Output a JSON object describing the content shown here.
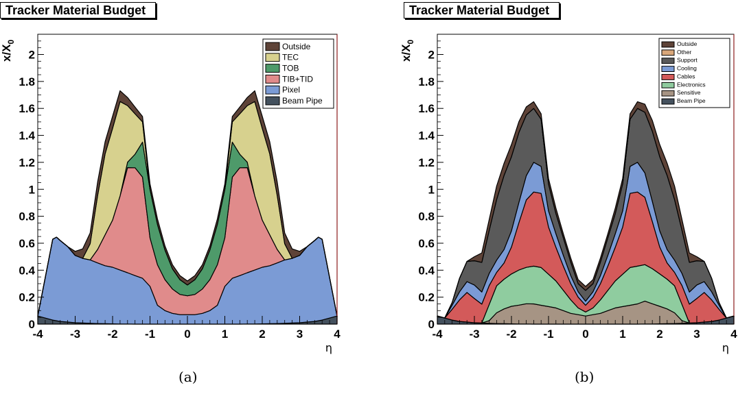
{
  "captions": [
    "(a)",
    "(b)"
  ],
  "colors": {
    "outside": "#5e4338",
    "tec": "#d7d18e",
    "tob": "#4e9a6a",
    "tib_tid": "#e08b8b",
    "pixel": "#7b9bd5",
    "beam_pipe": "#44515e",
    "other": "#d9a77a",
    "support": "#5a5a5a",
    "cooling": "#7b9bd5",
    "cables": "#d35a5a",
    "electronics": "#8fcc9f",
    "sensitive": "#a69484"
  },
  "chart_data": [
    {
      "type": "area",
      "title": "Tracker Material Budget",
      "xlabel": "η",
      "ylabel": "x/X0",
      "xlim": [
        -4,
        4
      ],
      "ylim": [
        0,
        2.15
      ],
      "xticks": [
        "-4",
        "-3",
        "-2",
        "-1",
        "0",
        "1",
        "2",
        "3",
        "4"
      ],
      "yticks": [
        "0",
        "0.2",
        "0.4",
        "0.6",
        "0.8",
        "1",
        "1.2",
        "1.4",
        "1.6",
        "1.8",
        "2"
      ],
      "stacked": true,
      "legend_position": "top-right",
      "x": [
        -4.0,
        -3.6,
        -3.5,
        -3.4,
        -3.2,
        -3.0,
        -2.8,
        -2.6,
        -2.4,
        -2.2,
        -2.0,
        -1.8,
        -1.6,
        -1.4,
        -1.2,
        -1.0,
        -0.8,
        -0.6,
        -0.4,
        -0.2,
        0.0,
        0.2,
        0.4,
        0.6,
        0.8,
        1.0,
        1.2,
        1.4,
        1.6,
        1.8,
        2.0,
        2.2,
        2.4,
        2.6,
        2.8,
        3.0,
        3.2,
        3.4,
        3.5,
        3.6,
        4.0
      ],
      "series": [
        {
          "name": "Beam Pipe",
          "values": [
            0.06,
            0.03,
            0.025,
            0.02,
            0.015,
            0.01,
            0.008,
            0.006,
            0.004,
            0.003,
            0.002,
            0.001,
            0.001,
            0.0,
            0.0,
            0.0,
            0.0,
            0.0,
            0.0,
            0.0,
            0.0,
            0.0,
            0.0,
            0.0,
            0.0,
            0.0,
            0.0,
            0.0,
            0.001,
            0.001,
            0.002,
            0.003,
            0.004,
            0.006,
            0.008,
            0.01,
            0.015,
            0.02,
            0.025,
            0.03,
            0.06
          ]
        },
        {
          "name": "Pixel",
          "values": [
            0.0,
            0.6,
            0.62,
            0.6,
            0.56,
            0.5,
            0.48,
            0.47,
            0.45,
            0.43,
            0.42,
            0.4,
            0.38,
            0.36,
            0.34,
            0.28,
            0.14,
            0.1,
            0.08,
            0.07,
            0.07,
            0.07,
            0.08,
            0.1,
            0.14,
            0.28,
            0.34,
            0.36,
            0.38,
            0.4,
            0.42,
            0.43,
            0.45,
            0.47,
            0.48,
            0.5,
            0.56,
            0.6,
            0.62,
            0.6,
            0.0
          ]
        },
        {
          "name": "TIB+TID",
          "values": [
            0.0,
            0.0,
            0.0,
            0.0,
            0.0,
            0.0,
            0.0,
            0.0,
            0.1,
            0.23,
            0.35,
            0.55,
            0.78,
            0.8,
            0.75,
            0.36,
            0.3,
            0.23,
            0.18,
            0.15,
            0.14,
            0.15,
            0.18,
            0.23,
            0.3,
            0.36,
            0.75,
            0.8,
            0.78,
            0.55,
            0.35,
            0.23,
            0.1,
            0.0,
            0.0,
            0.0,
            0.0,
            0.0,
            0.0,
            0.0,
            0.0
          ]
        },
        {
          "name": "TOB",
          "values": [
            0.0,
            0.0,
            0.0,
            0.0,
            0.0,
            0.0,
            0.0,
            0.0,
            0.0,
            0.0,
            0.0,
            0.0,
            0.04,
            0.1,
            0.26,
            0.36,
            0.3,
            0.22,
            0.15,
            0.11,
            0.08,
            0.11,
            0.15,
            0.22,
            0.3,
            0.36,
            0.26,
            0.1,
            0.04,
            0.0,
            0.0,
            0.0,
            0.0,
            0.0,
            0.0,
            0.0,
            0.0,
            0.0,
            0.0,
            0.0,
            0.0
          ]
        },
        {
          "name": "TEC",
          "values": [
            0.0,
            0.0,
            0.0,
            0.0,
            0.0,
            0.0,
            0.0,
            0.12,
            0.4,
            0.6,
            0.68,
            0.7,
            0.42,
            0.3,
            0.15,
            0.0,
            0.0,
            0.0,
            0.0,
            0.0,
            0.0,
            0.0,
            0.0,
            0.0,
            0.0,
            0.0,
            0.15,
            0.3,
            0.42,
            0.7,
            0.68,
            0.6,
            0.4,
            0.12,
            0.0,
            0.0,
            0.0,
            0.0,
            0.0,
            0.0,
            0.0
          ]
        },
        {
          "name": "Outside",
          "values": [
            0.0,
            0.0,
            0.0,
            0.0,
            0.0,
            0.03,
            0.07,
            0.08,
            0.1,
            0.09,
            0.09,
            0.08,
            0.06,
            0.05,
            0.04,
            0.04,
            0.04,
            0.03,
            0.03,
            0.03,
            0.03,
            0.03,
            0.03,
            0.03,
            0.04,
            0.04,
            0.04,
            0.05,
            0.06,
            0.08,
            0.09,
            0.09,
            0.1,
            0.08,
            0.07,
            0.03,
            0.0,
            0.0,
            0.0,
            0.0,
            0.0
          ]
        }
      ]
    },
    {
      "type": "area",
      "title": "Tracker Material Budget",
      "xlabel": "η",
      "ylabel": "x/X0",
      "xlim": [
        -4,
        4
      ],
      "ylim": [
        0,
        2.15
      ],
      "xticks": [
        "-4",
        "-3",
        "-2",
        "-1",
        "0",
        "1",
        "2",
        "3",
        "4"
      ],
      "yticks": [
        "0",
        "0.2",
        "0.4",
        "0.6",
        "0.8",
        "1",
        "1.2",
        "1.4",
        "1.6",
        "1.8",
        "2"
      ],
      "stacked": true,
      "legend_position": "top-right",
      "x": [
        -4.0,
        -3.8,
        -3.6,
        -3.4,
        -3.2,
        -3.0,
        -2.8,
        -2.6,
        -2.4,
        -2.2,
        -2.0,
        -1.8,
        -1.6,
        -1.4,
        -1.2,
        -1.0,
        -0.8,
        -0.6,
        -0.4,
        -0.2,
        0.0,
        0.2,
        0.4,
        0.6,
        0.8,
        1.0,
        1.2,
        1.4,
        1.6,
        1.8,
        2.0,
        2.2,
        2.4,
        2.6,
        2.8,
        3.0,
        3.2,
        3.4,
        3.6,
        3.8,
        4.0
      ],
      "series": [
        {
          "name": "Beam Pipe",
          "values": [
            0.06,
            0.045,
            0.03,
            0.02,
            0.015,
            0.01,
            0.008,
            0.006,
            0.004,
            0.003,
            0.002,
            0.001,
            0.001,
            0.0,
            0.0,
            0.0,
            0.0,
            0.0,
            0.0,
            0.0,
            0.0,
            0.0,
            0.0,
            0.0,
            0.0,
            0.0,
            0.0,
            0.0,
            0.001,
            0.001,
            0.002,
            0.003,
            0.004,
            0.006,
            0.008,
            0.01,
            0.015,
            0.02,
            0.03,
            0.045,
            0.06
          ]
        },
        {
          "name": "Sensitive",
          "values": [
            0.0,
            0.0,
            0.0,
            0.0,
            0.0,
            0.0,
            0.0,
            0.02,
            0.08,
            0.11,
            0.13,
            0.14,
            0.15,
            0.15,
            0.14,
            0.13,
            0.12,
            0.1,
            0.08,
            0.07,
            0.06,
            0.07,
            0.08,
            0.1,
            0.12,
            0.13,
            0.14,
            0.15,
            0.17,
            0.15,
            0.13,
            0.11,
            0.08,
            0.02,
            0.0,
            0.0,
            0.0,
            0.0,
            0.0,
            0.0,
            0.0
          ]
        },
        {
          "name": "Electronics",
          "values": [
            0.0,
            0.0,
            0.0,
            0.0,
            0.0,
            0.0,
            0.0,
            0.12,
            0.2,
            0.22,
            0.24,
            0.26,
            0.27,
            0.28,
            0.28,
            0.24,
            0.2,
            0.15,
            0.1,
            0.05,
            0.03,
            0.05,
            0.1,
            0.15,
            0.2,
            0.24,
            0.28,
            0.28,
            0.27,
            0.26,
            0.24,
            0.22,
            0.2,
            0.12,
            0.0,
            0.0,
            0.0,
            0.0,
            0.0,
            0.0,
            0.0
          ]
        },
        {
          "name": "Cables",
          "values": [
            0.0,
            0.0,
            0.08,
            0.16,
            0.22,
            0.18,
            0.14,
            0.14,
            0.1,
            0.12,
            0.2,
            0.35,
            0.5,
            0.55,
            0.55,
            0.35,
            0.25,
            0.18,
            0.12,
            0.08,
            0.05,
            0.08,
            0.12,
            0.18,
            0.25,
            0.35,
            0.55,
            0.55,
            0.5,
            0.35,
            0.2,
            0.12,
            0.1,
            0.14,
            0.14,
            0.18,
            0.22,
            0.16,
            0.08,
            0.0,
            0.0
          ]
        },
        {
          "name": "Cooling",
          "values": [
            0.0,
            0.0,
            0.03,
            0.06,
            0.08,
            0.1,
            0.09,
            0.09,
            0.09,
            0.1,
            0.12,
            0.15,
            0.18,
            0.22,
            0.2,
            0.12,
            0.1,
            0.08,
            0.06,
            0.04,
            0.03,
            0.04,
            0.06,
            0.08,
            0.1,
            0.12,
            0.2,
            0.22,
            0.18,
            0.15,
            0.12,
            0.1,
            0.09,
            0.09,
            0.09,
            0.1,
            0.08,
            0.06,
            0.03,
            0.0,
            0.0
          ]
        },
        {
          "name": "Support",
          "values": [
            0.0,
            0.0,
            0.02,
            0.1,
            0.15,
            0.18,
            0.22,
            0.32,
            0.45,
            0.55,
            0.55,
            0.52,
            0.45,
            0.4,
            0.35,
            0.2,
            0.15,
            0.13,
            0.1,
            0.06,
            0.08,
            0.06,
            0.1,
            0.13,
            0.15,
            0.2,
            0.35,
            0.4,
            0.45,
            0.52,
            0.55,
            0.55,
            0.45,
            0.32,
            0.22,
            0.18,
            0.15,
            0.1,
            0.02,
            0.0,
            0.0
          ]
        },
        {
          "name": "Other",
          "values": [
            0.0,
            0.0,
            0.0,
            0.0,
            0.0,
            0.0,
            0.0,
            0.0,
            0.0,
            0.0,
            0.0,
            0.0,
            0.0,
            0.0,
            0.0,
            0.0,
            0.0,
            0.0,
            0.0,
            0.0,
            0.0,
            0.0,
            0.0,
            0.0,
            0.0,
            0.0,
            0.0,
            0.0,
            0.0,
            0.0,
            0.0,
            0.0,
            0.0,
            0.0,
            0.0,
            0.0,
            0.0,
            0.0,
            0.0,
            0.0,
            0.0
          ]
        },
        {
          "name": "Outside",
          "values": [
            0.0,
            0.0,
            0.0,
            0.0,
            0.0,
            0.03,
            0.07,
            0.08,
            0.1,
            0.09,
            0.09,
            0.08,
            0.06,
            0.05,
            0.04,
            0.04,
            0.04,
            0.03,
            0.03,
            0.03,
            0.03,
            0.03,
            0.03,
            0.03,
            0.04,
            0.04,
            0.04,
            0.05,
            0.06,
            0.08,
            0.09,
            0.09,
            0.1,
            0.08,
            0.07,
            0.03,
            0.0,
            0.0,
            0.0,
            0.0,
            0.0
          ]
        }
      ]
    }
  ]
}
